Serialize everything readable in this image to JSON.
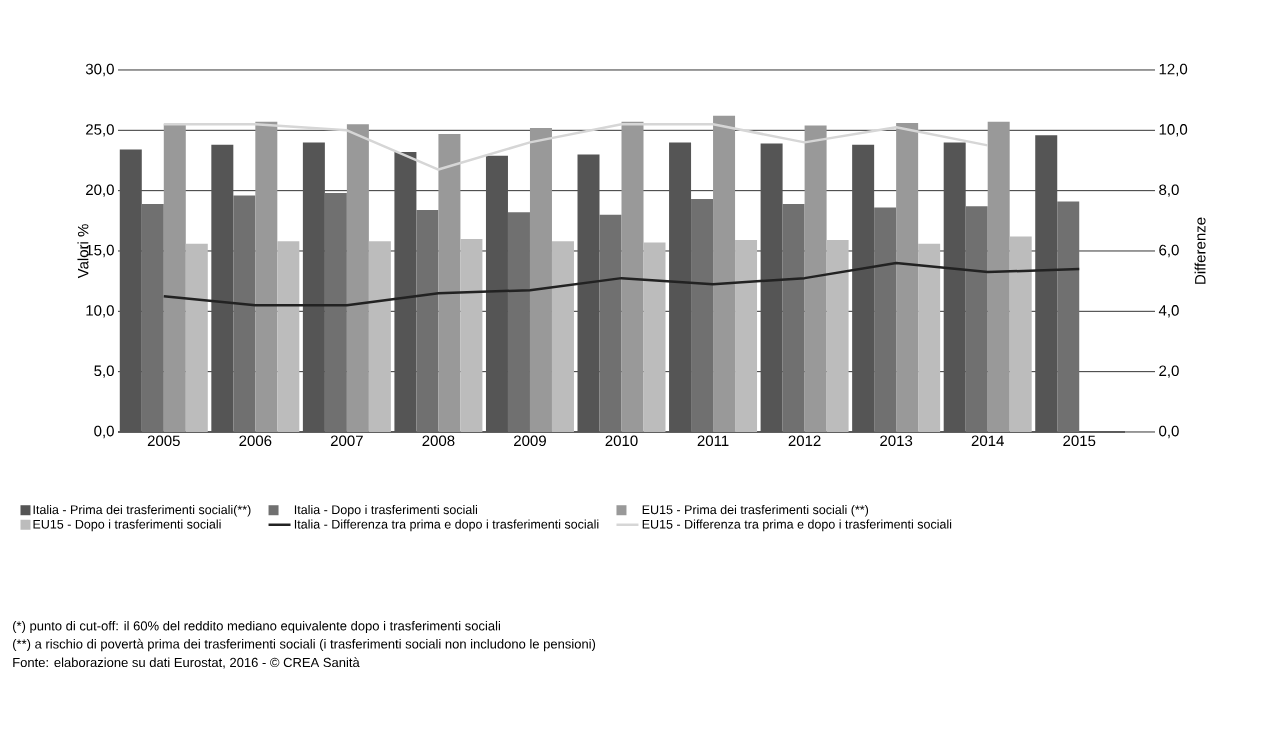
{
  "chart_data": {
    "type": "bar",
    "ylabel": "Valori %",
    "y2label": "Differenze",
    "categories": [
      "2005",
      "2006",
      "2007",
      "2008",
      "2009",
      "2010",
      "2011",
      "2012",
      "2013",
      "2014",
      "2015"
    ],
    "series": [
      {
        "name": "Italia - Prima dei trasferimenti sociali(**)",
        "color": "#555555",
        "values": [
          23.4,
          23.8,
          24.0,
          23.2,
          22.9,
          23.0,
          24.0,
          23.9,
          23.8,
          24.0,
          24.6
        ]
      },
      {
        "name": "Italia - Dopo i trasferimenti sociali",
        "color": "#707070",
        "values": [
          18.9,
          19.6,
          19.8,
          18.4,
          18.2,
          18.0,
          19.3,
          18.9,
          18.6,
          18.7,
          19.1
        ]
      },
      {
        "name": "EU15 - Prima dei trasferimenti sociali (**)",
        "color": "#999999",
        "values": [
          25.5,
          25.7,
          25.5,
          24.7,
          25.2,
          25.7,
          26.2,
          25.4,
          25.6,
          25.7,
          null
        ]
      },
      {
        "name": "EU15 - Dopo i trasferimenti sociali",
        "color": "#bcbcbc",
        "values": [
          15.6,
          15.8,
          15.8,
          16.0,
          15.8,
          15.7,
          15.9,
          15.9,
          15.6,
          16.2,
          null
        ]
      },
      {
        "name": "Italia - Differenza tra prima e dopo i trasferimenti sociali",
        "type": "line",
        "axis": "y2",
        "color": "#222222",
        "values": [
          4.5,
          4.2,
          4.2,
          4.6,
          4.7,
          5.1,
          4.9,
          5.1,
          5.6,
          5.3,
          5.4
        ]
      },
      {
        "name": "EU15 - Differenza tra prima e dopo i trasferimenti sociali",
        "type": "line",
        "axis": "y2",
        "color": "#d6d6d6",
        "values": [
          10.2,
          10.2,
          10.0,
          8.7,
          9.6,
          10.2,
          10.2,
          9.6,
          10.1,
          9.5,
          null
        ]
      }
    ],
    "ylim": [
      0,
      30
    ],
    "yticks": [
      {
        "value": 0,
        "label": "0,0"
      },
      {
        "value": 5,
        "label": "5,0"
      },
      {
        "value": 10,
        "label": "10,0"
      },
      {
        "value": 15,
        "label": "15,0"
      },
      {
        "value": 20,
        "label": "20,0"
      },
      {
        "value": 25,
        "label": "25,0"
      },
      {
        "value": 30,
        "label": "30,0"
      }
    ],
    "y2lim": [
      0,
      12
    ],
    "y2ticks": [
      {
        "value": 0,
        "label": "0,0"
      },
      {
        "value": 2,
        "label": "2,0"
      },
      {
        "value": 4,
        "label": "4,0"
      },
      {
        "value": 6,
        "label": "6,0"
      },
      {
        "value": 8,
        "label": "8,0"
      },
      {
        "value": 10,
        "label": "10,0"
      },
      {
        "value": 12,
        "label": "12,0"
      }
    ],
    "grid": "y",
    "legend": "bottom",
    "annotations": [
      "(*) punto di cut-off: il 60% del reddito mediano equivalente dopo i trasferimenti sociali",
      "(**) a rischio di povertà prima dei trasferimenti sociali (i trasferimenti sociali non includono le pensioni)",
      "Fonte: elaborazione su dati Eurostat, 2016 - © CREA Sanità"
    ]
  }
}
